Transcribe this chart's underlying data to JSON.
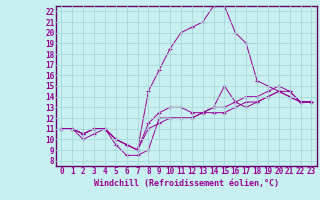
{
  "xlabel": "Windchill (Refroidissement éolien,°C)",
  "background_color": "#c8f0f0",
  "grid_color": "#a8d8d8",
  "line_color": "#990099",
  "x_hours": [
    0,
    1,
    2,
    3,
    4,
    5,
    6,
    7,
    8,
    9,
    10,
    11,
    12,
    13,
    14,
    15,
    16,
    17,
    18,
    19,
    20,
    21,
    22,
    23
  ],
  "series": [
    [
      11.0,
      11.0,
      10.0,
      10.5,
      11.0,
      9.5,
      8.5,
      8.5,
      9.0,
      12.0,
      12.0,
      12.0,
      12.0,
      12.5,
      13.0,
      15.0,
      13.5,
      13.0,
      13.5,
      14.0,
      14.5,
      14.5,
      13.5,
      13.5
    ],
    [
      11.0,
      11.0,
      10.5,
      11.0,
      11.0,
      10.0,
      9.5,
      9.0,
      14.5,
      16.5,
      18.5,
      20.0,
      20.5,
      21.0,
      22.5,
      22.5,
      20.0,
      19.0,
      15.5,
      15.0,
      14.5,
      14.0,
      13.5,
      13.5
    ],
    [
      11.0,
      11.0,
      10.5,
      11.0,
      11.0,
      10.0,
      9.5,
      9.0,
      11.5,
      12.5,
      13.0,
      13.0,
      12.5,
      12.5,
      13.0,
      13.0,
      13.5,
      14.0,
      14.0,
      14.5,
      15.0,
      14.5,
      13.5,
      13.5
    ],
    [
      11.0,
      11.0,
      10.5,
      11.0,
      11.0,
      10.0,
      9.5,
      9.0,
      11.0,
      11.5,
      12.0,
      12.0,
      12.0,
      12.5,
      12.5,
      12.5,
      13.0,
      13.5,
      13.5,
      14.0,
      14.5,
      14.0,
      13.5,
      13.5
    ]
  ],
  "ylim": [
    7.5,
    22.5
  ],
  "xlim": [
    -0.5,
    23.5
  ],
  "yticks": [
    8,
    9,
    10,
    11,
    12,
    13,
    14,
    15,
    16,
    17,
    18,
    19,
    20,
    21,
    22
  ],
  "xticks": [
    0,
    1,
    2,
    3,
    4,
    5,
    6,
    7,
    8,
    9,
    10,
    11,
    12,
    13,
    14,
    15,
    16,
    17,
    18,
    19,
    20,
    21,
    22,
    23
  ],
  "tick_fontsize": 5.5,
  "xlabel_fontsize": 6,
  "spine_color": "#660066"
}
